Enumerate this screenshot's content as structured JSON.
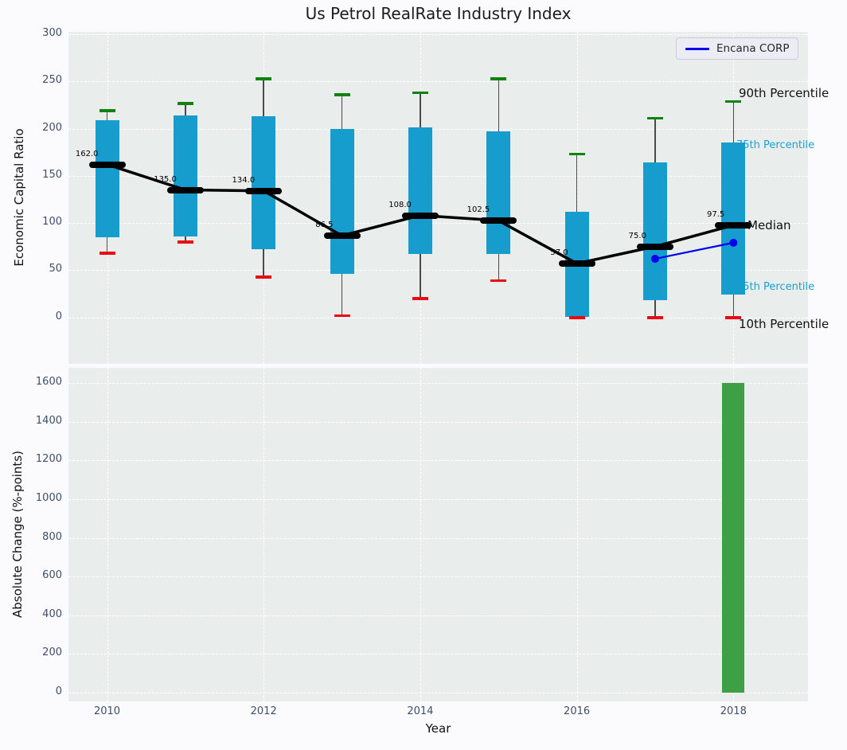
{
  "title": "Us Petrol RealRate Industry Index",
  "legend": {
    "label": "Encana CORP"
  },
  "annotations": {
    "p90": "90th Percentile",
    "p75": "75th Percentile",
    "median": "Median",
    "p25": "25th Percentile",
    "p10": "10th Percentile"
  },
  "colors": {
    "box": "#169dcd",
    "median": "#000000",
    "whisker": "#4a4a4a",
    "p90_cap": "#0f820f",
    "p10_cap": "#ea0a14",
    "overlay_line": "#0000ee",
    "bar": "#3ea044",
    "axes_bg": "#e9eeed",
    "figure_bg": "#fbfbfe",
    "grid": "#ffffff",
    "tick_label": "#3f4e68",
    "percentile_label_blue": "#1c9fd0"
  },
  "chart_data": [
    {
      "type": "boxplot-line",
      "title": "Us Petrol RealRate Industry Index",
      "ylabel": "Economic Capital Ratio",
      "ylim": [
        -50,
        302
      ],
      "yticks": [
        0,
        50,
        100,
        150,
        200,
        250,
        300
      ],
      "xticks": [
        2010,
        2012,
        2014,
        2016,
        2018
      ],
      "grid": true,
      "legend_position": "upper right",
      "years": [
        2010,
        2011,
        2012,
        2013,
        2014,
        2015,
        2016,
        2017,
        2018
      ],
      "percentile_10": [
        68,
        80,
        43,
        2,
        20,
        39,
        0,
        0,
        0
      ],
      "percentile_25": [
        85,
        86,
        72,
        46,
        67,
        67,
        0,
        18,
        24
      ],
      "median": [
        162.0,
        135.0,
        134.0,
        86.5,
        108.0,
        102.5,
        57.0,
        75.0,
        97.5
      ],
      "percentile_75": [
        209,
        214,
        213,
        200,
        201,
        197,
        112,
        164,
        185
      ],
      "percentile_90": [
        219,
        227,
        253,
        236,
        238,
        253,
        173,
        211,
        229
      ],
      "median_labels": [
        "162.0",
        "135.0",
        "134.0",
        "86.5",
        "108.0",
        "102.5",
        "57.0",
        "75.0",
        "97.5"
      ],
      "overlay_series": {
        "name": "Encana CORP",
        "x": [
          2017,
          2018
        ],
        "y": [
          62,
          79
        ]
      }
    },
    {
      "type": "bar",
      "ylabel": "Absolute Change (%-points)",
      "xlabel": "Year",
      "ylim": [
        -40,
        1680
      ],
      "yticks": [
        0,
        200,
        400,
        600,
        800,
        1000,
        1200,
        1400,
        1600
      ],
      "xticks": [
        2010,
        2012,
        2014,
        2016,
        2018
      ],
      "grid": true,
      "bars": [
        {
          "x": 2018,
          "value": 1600
        }
      ]
    }
  ]
}
